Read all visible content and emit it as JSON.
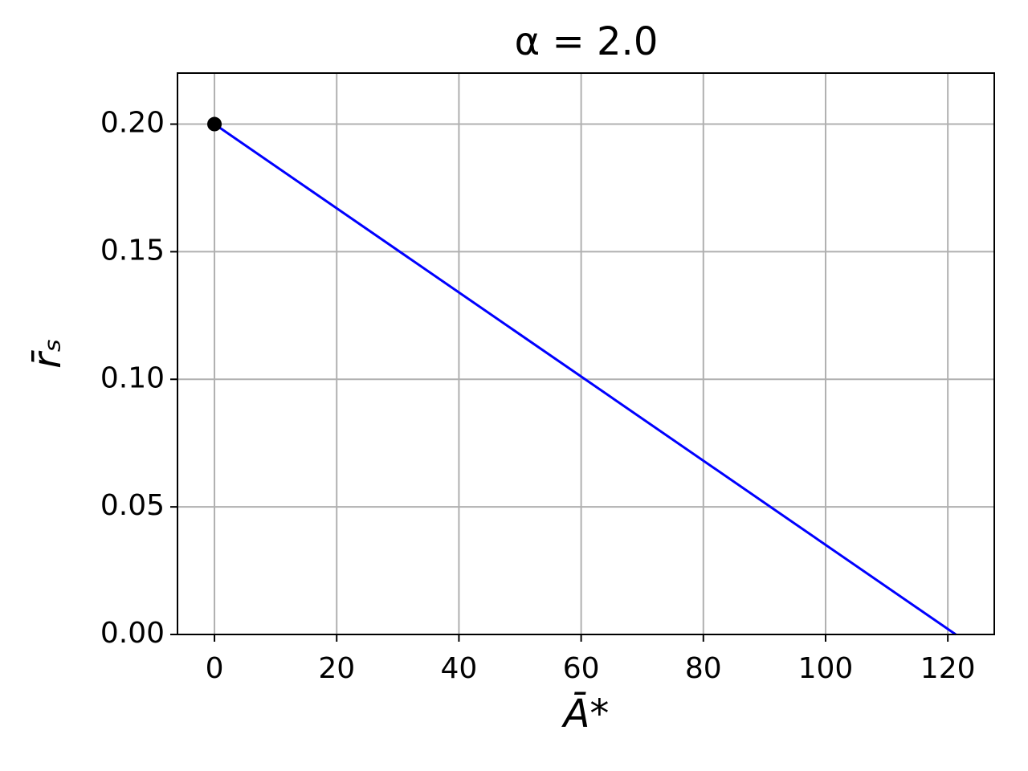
{
  "chart_data": {
    "type": "line",
    "title": "α = 2.0",
    "xlabel": "Ā*",
    "ylabel": "r̄ₛ",
    "x": [
      0,
      121.3
    ],
    "values": [
      0.2,
      0
    ],
    "color": "#0000ff",
    "points": {
      "x": [
        0
      ],
      "values": [
        0.2
      ],
      "color": "#000000"
    },
    "xlim": [
      -6.05,
      127.6
    ],
    "ylim": [
      0,
      0.22
    ],
    "xticks": [
      0,
      20,
      40,
      60,
      80,
      100,
      120
    ],
    "yticks": [
      {
        "value": 0,
        "label": "0.00"
      },
      {
        "value": 0.05,
        "label": "0.05"
      },
      {
        "value": 0.1,
        "label": "0.10"
      },
      {
        "value": 0.15,
        "label": "0.15"
      },
      {
        "value": 0.2,
        "label": "0.20"
      }
    ],
    "grid": true
  }
}
